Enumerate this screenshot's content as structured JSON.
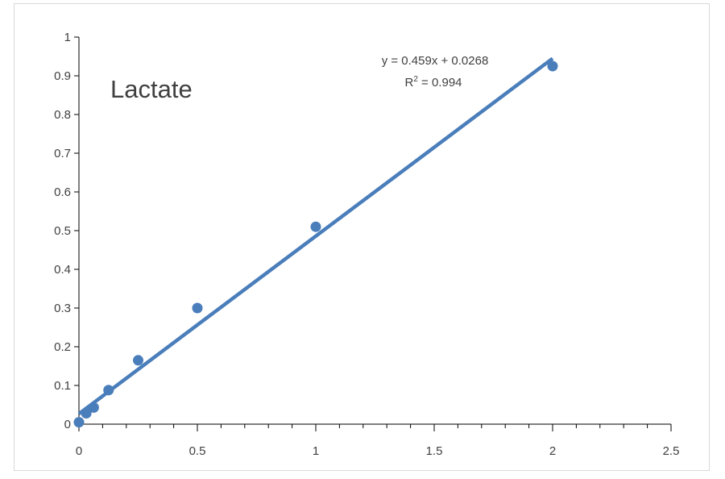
{
  "chart_data": {
    "type": "scatter",
    "title": "Lactate",
    "xlabel": "",
    "ylabel": "",
    "xlim": [
      0,
      2.5
    ],
    "ylim": [
      0,
      1
    ],
    "x_ticks": [
      "0",
      "0.5",
      "1",
      "1.5",
      "2",
      "2.5"
    ],
    "y_ticks": [
      "0",
      "0.1",
      "0.2",
      "0.3",
      "0.4",
      "0.5",
      "0.6",
      "0.7",
      "0.8",
      "0.9",
      "1"
    ],
    "series": [
      {
        "points": [
          {
            "x": 0,
            "y": 0.005
          },
          {
            "x": 0.031,
            "y": 0.028
          },
          {
            "x": 0.0625,
            "y": 0.043
          },
          {
            "x": 0.125,
            "y": 0.088
          },
          {
            "x": 0.25,
            "y": 0.165
          },
          {
            "x": 0.5,
            "y": 0.3
          },
          {
            "x": 1,
            "y": 0.51
          },
          {
            "x": 2,
            "y": 0.925
          }
        ]
      }
    ],
    "trendline": {
      "slope": 0.459,
      "intercept": 0.0268,
      "x_range": [
        0,
        2
      ],
      "equation_label": "y = 0.459x + 0.0268",
      "r2_label_prefix": "R",
      "r2_label_sup": "2",
      "r2_label_value": " = 0.994"
    },
    "grid": false,
    "legend": "none",
    "colors": {
      "series": "#4a7ebb",
      "axis": "#000000",
      "text": "#404040"
    }
  }
}
